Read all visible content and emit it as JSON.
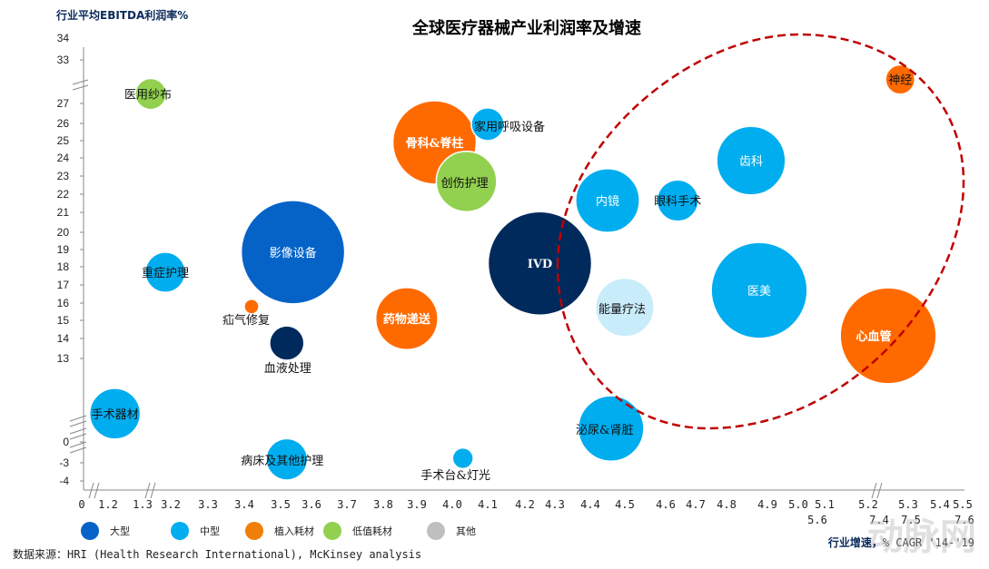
{
  "chart_data": {
    "type": "scatter",
    "subtype": "bubble",
    "title": "全球医疗器械产业利润率及增速",
    "ylabel": "行业平均EBITDA利润率%",
    "xlabel_bold": "行业增速，",
    "xlabel_rest": "% CAGR '14-'19",
    "x_tick_labels": [
      "0",
      "1.2",
      "1.3",
      "3.2",
      "3.3",
      "3.4",
      "3.5",
      "3.6",
      "3.7",
      "3.8",
      "3.9",
      "4.0",
      "4.1",
      "4.2",
      "4.3",
      "4.4",
      "4.5",
      "4.6",
      "4.7",
      "4.8",
      "4.9",
      "5.0",
      "5.1",
      "5.2",
      "5.3",
      "5.4",
      "5.5"
    ],
    "x_tick_labels_row2": [
      "5.6",
      "7.4",
      "7.5",
      "7.6"
    ],
    "y_tick_labels": [
      "34",
      "33",
      "27",
      "26",
      "25",
      "24",
      "23",
      "22",
      "21",
      "20",
      "19",
      "18",
      "17",
      "16",
      "15",
      "14",
      "13",
      "0",
      "-3",
      "-4"
    ],
    "axis_breaks": "x and y axes broken",
    "grid": false,
    "legend_position": "bottom-left",
    "legend": [
      {
        "label": "大型",
        "color": "#0563c8"
      },
      {
        "label": "中型",
        "color": "#00adef"
      },
      {
        "label": "植入耗材",
        "color": "#f07f09"
      },
      {
        "label": "低值耗材",
        "color": "#92d050"
      },
      {
        "label": "其他",
        "color": "#bfbfbf"
      }
    ],
    "series": [
      {
        "name": "医用纱布",
        "x": 1.36,
        "y": 28.3,
        "size": 9,
        "category": "低值耗材",
        "color": "#92d050"
      },
      {
        "name": "骨科&脊柱",
        "x": 3.95,
        "y": 24.9,
        "size": 65,
        "category": "植入耗材",
        "color": "#ff6a00"
      },
      {
        "name": "家用呼吸设备",
        "x": 4.1,
        "y": 25.95,
        "size": 10,
        "category": "中型",
        "color": "#00adef"
      },
      {
        "name": "创伤护理",
        "x": 4.04,
        "y": 22.7,
        "size": 34,
        "category": "低值耗材",
        "color": "#92d050"
      },
      {
        "name": "影像设备",
        "x": 3.54,
        "y": 18.85,
        "size": 100,
        "category": "大型",
        "color": "#0563c8"
      },
      {
        "name": "重症护理",
        "x": 3.15,
        "y": 17.7,
        "size": 15,
        "category": "中型",
        "color": "#00adef"
      },
      {
        "name": "疝气修复",
        "x": 3.42,
        "y": 15.8,
        "size": 2,
        "category": "植入耗材",
        "color": "#ff6a00"
      },
      {
        "name": "血液处理",
        "x": 3.52,
        "y": 13.77,
        "size": 11,
        "category": "其他",
        "color": "#002a5c"
      },
      {
        "name": "药物递送",
        "x": 3.87,
        "y": 15.1,
        "size": 36,
        "category": "植入耗材",
        "color": "#ff6a00"
      },
      {
        "name": "IVD",
        "x": 4.25,
        "y": 18.2,
        "size": 100,
        "category": "其他",
        "color": "#002a5c"
      },
      {
        "name": "内镜",
        "x": 4.45,
        "y": 21.65,
        "size": 38,
        "category": "中型",
        "color": "#00adef"
      },
      {
        "name": "眼科手术",
        "x": 4.64,
        "y": 21.65,
        "size": 16,
        "category": "中型",
        "color": "#00adef"
      },
      {
        "name": "齿科",
        "x": 4.86,
        "y": 23.85,
        "size": 44,
        "category": "中型",
        "color": "#00adef"
      },
      {
        "name": "能量疗法",
        "x": 4.5,
        "y": 15.75,
        "size": 32,
        "category": "其他",
        "color": "#c9ecfb"
      },
      {
        "name": "医美",
        "x": 4.88,
        "y": 16.7,
        "size": 86,
        "category": "中型",
        "color": "#00adef"
      },
      {
        "name": "心血管",
        "x": 5.25,
        "y": 14.15,
        "size": 86,
        "category": "植入耗材",
        "color": "#ff6a00"
      },
      {
        "name": "神经",
        "x": 5.28,
        "y": 30.3,
        "size": 8,
        "category": "植入耗材",
        "color": "#ff6a00"
      },
      {
        "name": "泌尿&肾脏",
        "x": 4.46,
        "y": 2.1,
        "size": 40,
        "category": "中型",
        "color": "#00adef"
      },
      {
        "name": "手术器材",
        "x": 1.22,
        "y": 4.4,
        "size": 24,
        "category": "中型",
        "color": "#00adef"
      },
      {
        "name": "病床及其他护理",
        "x": 3.52,
        "y": -2.5,
        "size": 16,
        "category": "中型",
        "color": "#00adef"
      },
      {
        "name": "手术台&灯光",
        "x": 4.03,
        "y": -2.35,
        "size": 4,
        "category": "中型",
        "color": "#00adef"
      }
    ],
    "annotation": "dashed red ellipse around high-growth segments"
  },
  "source": "数据来源：HRI (Health Research International), McKinsey analysis",
  "watermark": "动脉网"
}
